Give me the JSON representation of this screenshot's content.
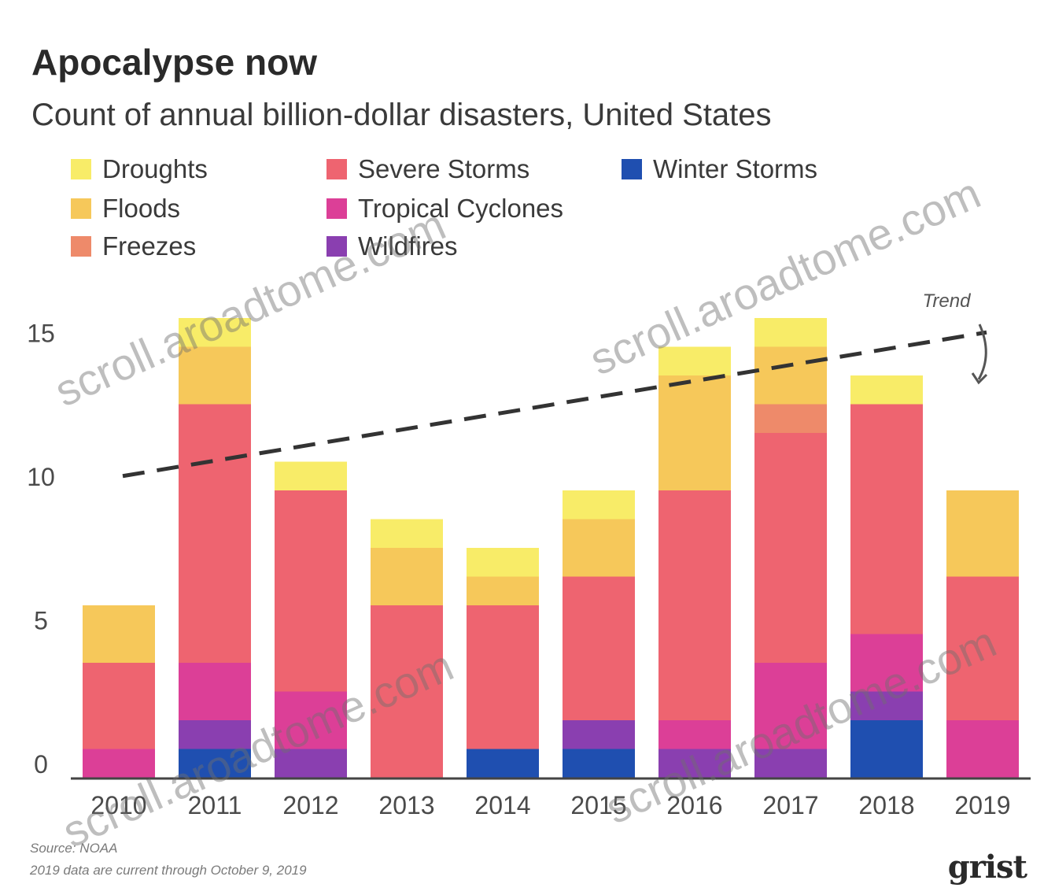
{
  "chart_data": {
    "type": "bar",
    "stacked": true,
    "title": "Apocalypse now",
    "subtitle": "Count of annual billion-dollar disasters, United States",
    "categories": [
      "2010",
      "2011",
      "2012",
      "2013",
      "2014",
      "2015",
      "2016",
      "2017",
      "2018",
      "2019"
    ],
    "yticks": [
      0,
      5,
      10,
      15
    ],
    "ylim": [
      0,
      17
    ],
    "series": [
      {
        "name": "Winter Storms",
        "color": "#1f4fb0",
        "values": [
          0,
          1,
          0,
          0,
          1,
          1,
          0,
          0,
          2,
          0
        ]
      },
      {
        "name": "Wildfires",
        "color": "#8a3fb0",
        "values": [
          0,
          1,
          1,
          0,
          0,
          1,
          1,
          1,
          1,
          0
        ]
      },
      {
        "name": "Tropical Cyclones",
        "color": "#dc3f97",
        "values": [
          1,
          2,
          2,
          0,
          0,
          0,
          1,
          3,
          2,
          2
        ]
      },
      {
        "name": "Severe Storms",
        "color": "#ee6470",
        "values": [
          3,
          9,
          7,
          6,
          5,
          5,
          8,
          8,
          8,
          5
        ]
      },
      {
        "name": "Freezes",
        "color": "#ee8a6a",
        "values": [
          0,
          0,
          0,
          0,
          0,
          0,
          0,
          1,
          0,
          0
        ]
      },
      {
        "name": "Floods",
        "color": "#f6c85a",
        "values": [
          2,
          2,
          0,
          2,
          1,
          2,
          4,
          2,
          0,
          3
        ]
      },
      {
        "name": "Droughts",
        "color": "#f8ec68",
        "values": [
          0,
          1,
          1,
          1,
          1,
          1,
          1,
          1,
          1,
          0
        ]
      }
    ],
    "legend_order": [
      "Droughts",
      "Floods",
      "Freezes",
      "Severe Storms",
      "Tropical Cyclones",
      "Wildfires",
      "Winter Storms"
    ],
    "legend_placement": "top",
    "trend": {
      "label": "Trend",
      "from": {
        "x": "2010",
        "y": 10.5
      },
      "to": {
        "x": "2019",
        "y": 15.5
      },
      "style": "dashed"
    },
    "grid": false
  },
  "footer": {
    "source": "Source: NOAA",
    "note": "2019 data are current through October 9, 2019"
  },
  "logo_text": "grist",
  "watermark_text": "scroll.aroadtome.com"
}
